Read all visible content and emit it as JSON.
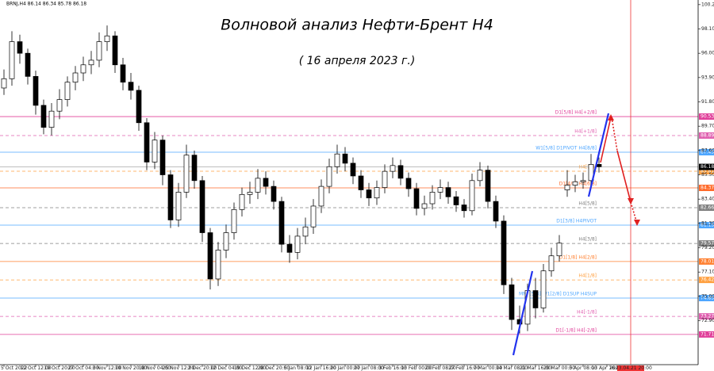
{
  "chart_data": {
    "type": "candlestick",
    "header": "BRNJ,H4 86.14 86.34 85.78 86.18",
    "title": "Волновой анализ Нефти-Брент H4",
    "subtitle": "( 16 апреля 2023 г.)",
    "categories": [
      "5 Oct 2022",
      null,
      null,
      null,
      "12 Oct 12:00",
      null,
      null,
      "19 Oct 20:00",
      null,
      null,
      "27 Oct 04:00",
      null,
      null,
      "3 Nov 12:00",
      null,
      null,
      "10 Nov 20:00",
      null,
      null,
      "18 Nov 04:00",
      null,
      null,
      "25 Nov 12:00",
      null,
      null,
      "2 Dec 20:00",
      null,
      null,
      "12 Dec 04:00",
      null,
      null,
      "19 Dec 12:00",
      null,
      null,
      "28 Dec 20:00",
      null,
      null,
      "5 Jan 08:00",
      null,
      null,
      "12 Jan 16:00",
      null,
      null,
      "20 Jan 00:00",
      null,
      null,
      "27 Jan 08:00",
      null,
      null,
      "3 Feb 16:00",
      null,
      null,
      "13 Feb 00:00",
      null,
      null,
      "20 Feb 08:00",
      null,
      null,
      "27 Feb 16:00",
      null,
      null,
      "7 Mar 00:00",
      null,
      null,
      "14 Mar 08:00",
      null,
      null,
      "21 Mar 16:00",
      null,
      null,
      "29 Mar 00:00",
      null,
      null,
      "5 Apr 08:00",
      null,
      null,
      "13 Apr 16:00",
      null,
      null,
      "2023.04.21 20:00"
    ],
    "open": [
      93.0,
      93.8,
      97.0,
      96.0,
      94.0,
      91.5,
      89.6,
      91.0,
      92.0,
      93.5,
      94.3,
      95.0,
      95.4,
      97.0,
      97.5,
      95.0,
      93.5,
      92.8,
      90.0,
      86.6,
      88.5,
      85.5,
      81.6,
      84.0,
      87.2,
      85.0,
      80.5,
      76.5,
      79.0,
      80.5,
      82.5,
      83.8,
      84.0,
      85.2,
      84.5,
      83.2,
      79.5,
      78.8,
      80.2,
      81.0,
      82.8,
      84.5,
      86.2,
      87.3,
      86.5,
      85.4,
      84.2,
      83.5,
      84.4,
      85.8,
      86.3,
      85.2,
      84.3,
      82.6,
      83.0,
      84.0,
      84.4,
      83.6,
      82.9,
      82.4,
      85.0,
      85.9,
      83.2,
      81.5,
      76.0,
      73.0,
      72.6,
      75.5,
      74.0,
      77.2,
      78.5,
      84.2,
      84.6,
      84.9,
      85.0,
      86.4,
      null,
      null,
      null,
      null
    ],
    "high": [
      94.6,
      97.9,
      97.6,
      96.4,
      94.5,
      92.0,
      91.7,
      92.9,
      94.0,
      94.9,
      95.7,
      96.2,
      97.8,
      98.4,
      97.9,
      95.6,
      94.3,
      93.2,
      90.4,
      89.2,
      88.9,
      85.9,
      84.8,
      88.1,
      87.6,
      85.4,
      80.9,
      79.7,
      81.2,
      83.1,
      84.4,
      84.9,
      86.0,
      85.8,
      85.0,
      83.6,
      80.3,
      80.9,
      81.8,
      83.4,
      85.1,
      86.9,
      88.1,
      87.9,
      87.0,
      85.9,
      84.8,
      85.0,
      86.4,
      87.0,
      86.8,
      85.7,
      84.8,
      83.7,
      84.6,
      85.1,
      84.9,
      84.1,
      83.4,
      85.6,
      86.6,
      86.3,
      83.7,
      82.0,
      76.6,
      74.2,
      76.1,
      76.6,
      77.8,
      79.2,
      80.3,
      85.9,
      85.5,
      85.7,
      87.3,
      87.0,
      null,
      null,
      null,
      null
    ],
    "low": [
      92.4,
      93.2,
      95.1,
      93.3,
      90.7,
      89.0,
      88.9,
      90.3,
      91.4,
      92.8,
      93.6,
      94.2,
      94.8,
      96.2,
      94.3,
      92.8,
      92.0,
      89.3,
      85.9,
      86.0,
      84.6,
      80.9,
      81.0,
      83.5,
      84.3,
      79.7,
      75.6,
      75.9,
      78.3,
      79.9,
      81.9,
      83.0,
      83.4,
      83.8,
      82.5,
      78.8,
      77.9,
      78.2,
      79.5,
      80.4,
      82.2,
      83.9,
      85.6,
      85.8,
      84.7,
      83.5,
      82.8,
      82.9,
      83.9,
      85.2,
      84.6,
      83.6,
      82.0,
      82.0,
      82.5,
      83.4,
      83.0,
      82.3,
      81.8,
      82.0,
      84.5,
      82.6,
      80.9,
      75.2,
      72.1,
      71.8,
      72.0,
      73.1,
      73.6,
      76.7,
      78.0,
      83.6,
      84.0,
      84.3,
      84.6,
      85.7,
      null,
      null,
      null,
      null
    ],
    "close": [
      93.8,
      97.0,
      96.0,
      94.0,
      91.5,
      89.6,
      91.0,
      92.0,
      93.5,
      94.3,
      95.0,
      95.4,
      97.0,
      97.5,
      95.0,
      93.5,
      92.8,
      90.0,
      86.6,
      88.5,
      85.5,
      81.6,
      84.0,
      87.2,
      85.0,
      80.5,
      76.5,
      79.0,
      80.5,
      82.5,
      83.8,
      84.0,
      85.2,
      84.5,
      83.2,
      79.5,
      78.8,
      80.2,
      81.0,
      82.8,
      84.5,
      86.2,
      87.3,
      86.5,
      85.4,
      84.2,
      83.5,
      84.4,
      85.8,
      86.3,
      85.2,
      84.3,
      82.6,
      83.0,
      84.0,
      84.4,
      83.6,
      82.9,
      82.4,
      85.0,
      85.9,
      83.2,
      81.5,
      76.0,
      73.0,
      72.6,
      75.5,
      74.0,
      77.2,
      78.5,
      79.6,
      84.6,
      84.9,
      85.0,
      86.4,
      86.2,
      null,
      null,
      null,
      null
    ],
    "ylim": [
      69.1,
      100.6
    ],
    "yticks": [
      {
        "value": 100.2,
        "label": "100.20"
      },
      {
        "value": 98.1,
        "label": "98.10"
      },
      {
        "value": 96,
        "label": "96.00"
      },
      {
        "value": 93.9,
        "label": "93.90"
      },
      {
        "value": 91.8,
        "label": "91.80"
      },
      {
        "value": 89.7,
        "label": "89.70"
      },
      {
        "value": 87.6,
        "label": "87.60"
      },
      {
        "value": 85.5,
        "label": "85.50"
      },
      {
        "value": 83.4,
        "label": "83.40"
      },
      {
        "value": 81.3,
        "label": "81.30"
      },
      {
        "value": 79.2,
        "label": "79.20"
      },
      {
        "value": 77.1,
        "label": "77.10"
      },
      {
        "value": 75,
        "label": "75.00"
      },
      {
        "value": 72.9,
        "label": "72.90"
      }
    ],
    "current_price": 86.18,
    "levels": [
      {
        "label": "D1[5/8] H4[+2/8]",
        "price": 90.53,
        "color": "#e0409a",
        "dashed": false
      },
      {
        "label": "H4[+1/8]",
        "price": 88.89,
        "color": "#e060b0",
        "dashed": true
      },
      {
        "label": "W1[5/8] D1PIVOT H4[8/8]",
        "price": 87.45,
        "color": "#4da6ff",
        "dashed": false
      },
      {
        "label": "H4[7/8]",
        "price": 85.81,
        "color": "#ffa040",
        "dashed": true
      },
      {
        "label": "D1[4/8] H4[6/8]",
        "price": 84.37,
        "color": "#ff6a2a",
        "dashed": false
      },
      {
        "label": "H4[5/8]",
        "price": 82.66,
        "color": "#808080",
        "dashed": true
      },
      {
        "label": "D1[3/8] H4PIVOT",
        "price": 81.15,
        "color": "#4da6ff",
        "dashed": false
      },
      {
        "label": "H4[3/8]",
        "price": 79.57,
        "color": "#808080",
        "dashed": true
      },
      {
        "label": "D1[1/8] H4[2/8]",
        "price": 78.01,
        "color": "#ff8030",
        "dashed": false
      },
      {
        "label": "H4[1/8]",
        "price": 76.42,
        "color": "#ffa040",
        "dashed": true
      },
      {
        "label": "MN1[5/8] W1[2/8] D1SUP H4SUP",
        "price": 74.85,
        "color": "#4da6ff",
        "dashed": false
      },
      {
        "label": "H4[-1/8]",
        "price": 73.27,
        "color": "#e060b0",
        "dashed": true
      },
      {
        "label": "D1[-1/8] H4[-2/8]",
        "price": 71.71,
        "color": "#e0409a",
        "dashed": false
      }
    ]
  }
}
